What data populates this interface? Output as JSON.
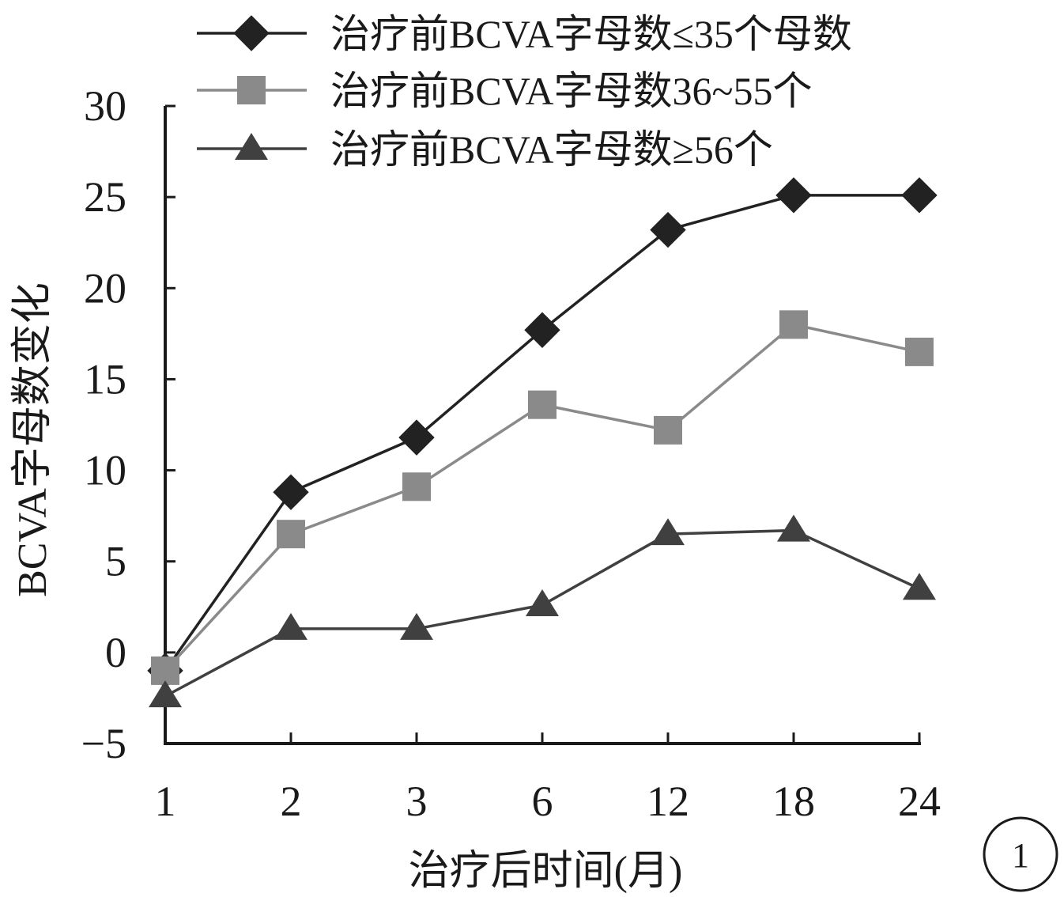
{
  "chart_data": {
    "type": "line",
    "categories": [
      "1",
      "2",
      "3",
      "6",
      "12",
      "18",
      "24"
    ],
    "series": [
      {
        "name": "治疗前BCVA字母数≤35个母数",
        "marker": "diamond",
        "color": "#222222",
        "values": [
          -1.0,
          8.8,
          11.8,
          17.7,
          23.2,
          25.1,
          25.1
        ]
      },
      {
        "name": "治疗前BCVA字母数36~55个",
        "marker": "square",
        "color": "#8a8a8a",
        "values": [
          -1.0,
          6.5,
          9.1,
          13.6,
          12.2,
          18.0,
          16.5
        ]
      },
      {
        "name": "治疗前BCVA字母数≥56个",
        "marker": "triangle",
        "color": "#404040",
        "values": [
          -2.4,
          1.3,
          1.3,
          2.6,
          6.5,
          6.7,
          3.5
        ]
      }
    ],
    "xlabel": "治疗后时间(月)",
    "ylabel": "BCVA字母数变化",
    "ylim": [
      -5,
      30
    ],
    "yticks": [
      -5,
      0,
      5,
      10,
      15,
      20,
      25,
      30
    ],
    "ytick_labels": [
      "−5",
      "0",
      "5",
      "10",
      "15",
      "20",
      "25",
      "30"
    ],
    "grid": false,
    "legend_position": "top-right"
  },
  "figure_label": "1"
}
